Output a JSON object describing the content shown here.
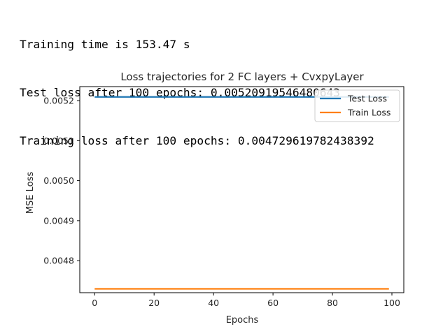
{
  "console_output": [
    "Training time is 153.47 s",
    "Test loss after 100 epochs: 0.00520919546480643",
    "Training loss after 100 epochs: 0.004729619782438392"
  ],
  "chart_data": {
    "type": "line",
    "title": "Loss trajectories for 2 FC layers + CvxpyLayer",
    "xlabel": "Epochs",
    "ylabel": "MSE Loss",
    "xlim": [
      -5,
      104
    ],
    "ylim": [
      0.00472,
      0.005235
    ],
    "xticks": [
      0,
      20,
      40,
      60,
      80,
      100
    ],
    "xtick_labels": [
      "0",
      "20",
      "40",
      "60",
      "80",
      "100"
    ],
    "yticks": [
      0.0048,
      0.0049,
      0.005,
      0.0051,
      0.0052
    ],
    "ytick_labels": [
      "0.0048",
      "0.0049",
      "0.0050",
      "0.0051",
      "0.0052"
    ],
    "grid": false,
    "legend_position": "top-right",
    "series": [
      {
        "name": "Test Loss",
        "color": "#1f77b4",
        "x": [
          0,
          99
        ],
        "values": [
          0.00520919546480643,
          0.00520919546480643
        ]
      },
      {
        "name": "Train Loss",
        "color": "#ff7f0e",
        "x": [
          0,
          99
        ],
        "values": [
          0.004729619782438392,
          0.004729619782438392
        ]
      }
    ]
  }
}
